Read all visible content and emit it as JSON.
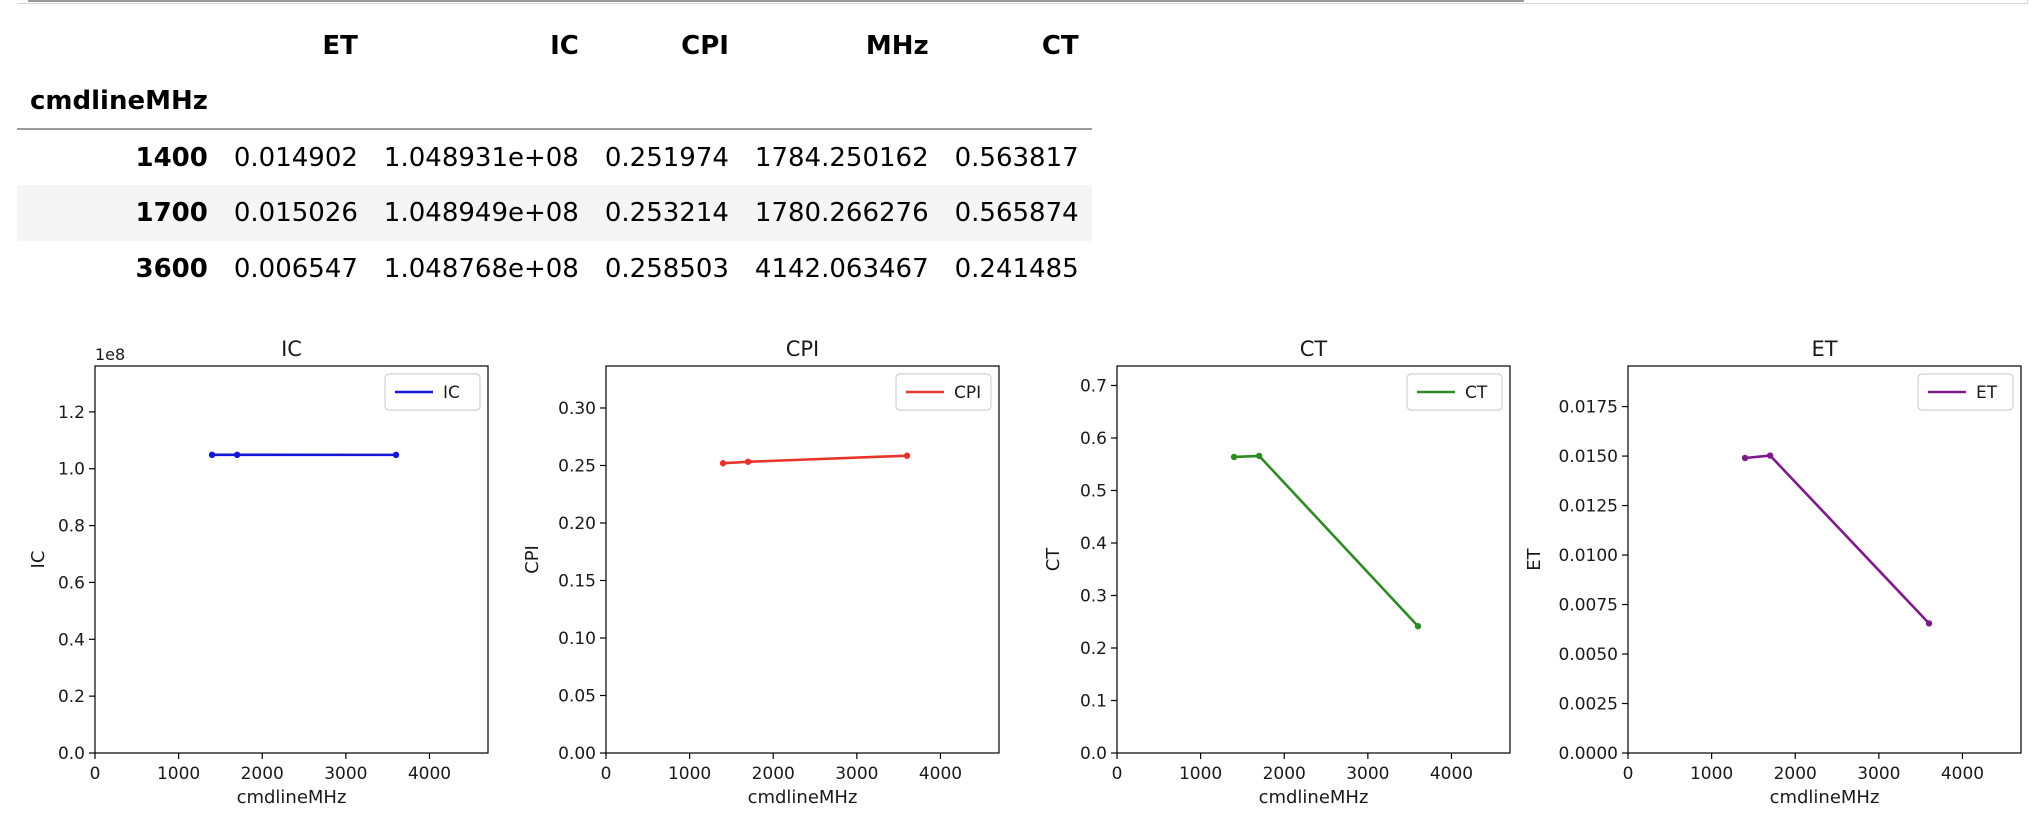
{
  "table": {
    "columns": [
      "ET",
      "IC",
      "CPI",
      "MHz",
      "CT"
    ],
    "index_name": "cmdlineMHz",
    "rows": [
      {
        "index": "1400",
        "cells": [
          "0.014902",
          "1.048931e+08",
          "0.251974",
          "1784.250162",
          "0.563817"
        ]
      },
      {
        "index": "1700",
        "cells": [
          "0.015026",
          "1.048949e+08",
          "0.253214",
          "1780.266276",
          "0.565874"
        ]
      },
      {
        "index": "3600",
        "cells": [
          "0.006547",
          "1.048768e+08",
          "0.258503",
          "4142.063467",
          "0.241485"
        ]
      }
    ]
  },
  "chart_data": [
    {
      "type": "line",
      "title": "IC",
      "xlabel": "cmdlineMHz",
      "ylabel": "IC",
      "offset_text": "1e8",
      "x": [
        1400,
        1700,
        3600
      ],
      "series": [
        {
          "name": "IC",
          "values": [
            1.048931,
            1.048949,
            1.048768
          ],
          "color": "#1616d6"
        }
      ],
      "xlim": [
        0,
        4700
      ],
      "ylim": [
        0,
        1.3614
      ],
      "xticks": [
        "0",
        "1000",
        "2000",
        "3000",
        "4000"
      ],
      "yticks": [
        "0.0",
        "0.2",
        "0.4",
        "0.6",
        "0.8",
        "1.0",
        "1.2"
      ],
      "legend": "top-right",
      "grid": false
    },
    {
      "type": "line",
      "title": "CPI",
      "xlabel": "cmdlineMHz",
      "ylabel": "CPI",
      "x": [
        1400,
        1700,
        3600
      ],
      "series": [
        {
          "name": "CPI",
          "values": [
            0.251974,
            0.253214,
            0.258503
          ],
          "color": "#e8342a"
        }
      ],
      "xlim": [
        0,
        4700
      ],
      "ylim": [
        0,
        0.3365
      ],
      "xticks": [
        "0",
        "1000",
        "2000",
        "3000",
        "4000"
      ],
      "yticks": [
        "0.00",
        "0.05",
        "0.10",
        "0.15",
        "0.20",
        "0.25",
        "0.30"
      ],
      "legend": "top-right",
      "grid": false
    },
    {
      "type": "line",
      "title": "CT",
      "xlabel": "cmdlineMHz",
      "ylabel": "CT",
      "x": [
        1400,
        1700,
        3600
      ],
      "series": [
        {
          "name": "CT",
          "values": [
            0.563817,
            0.565874,
            0.241485
          ],
          "color": "#2e8a22"
        }
      ],
      "xlim": [
        0,
        4700
      ],
      "ylim": [
        0,
        0.7371
      ],
      "xticks": [
        "0",
        "1000",
        "2000",
        "3000",
        "4000"
      ],
      "yticks": [
        "0.0",
        "0.1",
        "0.2",
        "0.3",
        "0.4",
        "0.5",
        "0.6",
        "0.7"
      ],
      "legend": "top-right",
      "grid": false
    },
    {
      "type": "line",
      "title": "ET",
      "xlabel": "cmdlineMHz",
      "ylabel": "ET",
      "x": [
        1400,
        1700,
        3600
      ],
      "series": [
        {
          "name": "ET",
          "values": [
            0.014902,
            0.015026,
            0.006547
          ],
          "color": "#7f1a8c"
        }
      ],
      "xlim": [
        0,
        4700
      ],
      "ylim": [
        0,
        0.01955
      ],
      "xticks": [
        "0",
        "1000",
        "2000",
        "3000",
        "4000"
      ],
      "yticks": [
        "0.0000",
        "0.0025",
        "0.0050",
        "0.0075",
        "0.0100",
        "0.0125",
        "0.0150",
        "0.0175"
      ],
      "legend": "top-right",
      "grid": false
    }
  ]
}
